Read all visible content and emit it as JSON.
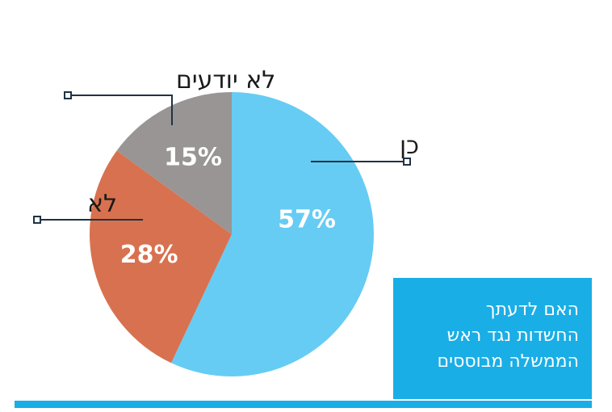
{
  "chart_data": {
    "type": "pie",
    "slices": [
      {
        "label": "כן",
        "value": 57,
        "display": "57%",
        "color": "#66ccf4"
      },
      {
        "label": "לא",
        "value": 28,
        "display": "28%",
        "color": "#d8714f"
      },
      {
        "label": "לא יודעים",
        "value": 15,
        "display": "15%",
        "color": "#999595"
      }
    ],
    "title_lines": [
      "האם לדעתך",
      "החשדות נגד ראש",
      "הממשלה מבוססים"
    ]
  },
  "colors": {
    "accent": "#1aaee6",
    "leader_line": "#1f3344"
  }
}
